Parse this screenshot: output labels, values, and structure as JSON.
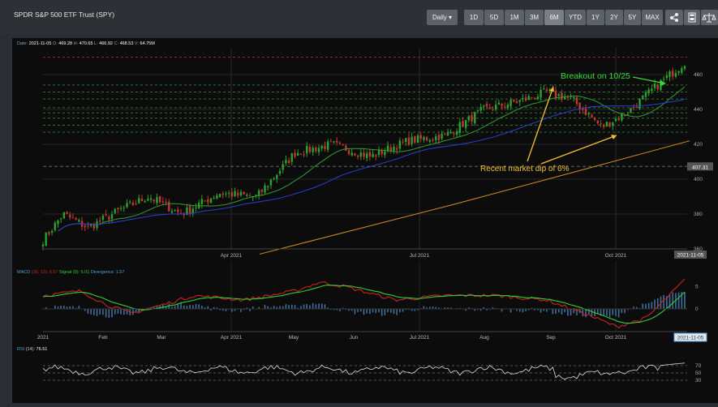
{
  "title": "SPDR S&P 500 ETF Trust (SPY)",
  "interval_button": "Daily ▾",
  "range_buttons": [
    "1D",
    "5D",
    "1M",
    "3M",
    "6M",
    "YTD",
    "1Y",
    "2Y",
    "5Y",
    "MAX"
  ],
  "active_range": "6M",
  "tool_icons": [
    "share-icon",
    "calculator-icon",
    "scale-icon"
  ],
  "info_line": {
    "date_label": "Date",
    "date": "2021-11-05",
    "open_label": "O",
    "open": "469.28",
    "high_label": "H",
    "high": "470.65",
    "low_label": "L",
    "low": "466.92",
    "close_label": "C",
    "close": "468.53",
    "vol_label": "V",
    "volume": "64.75M"
  },
  "price_axis_ticks": [
    "460",
    "440",
    "420",
    "400",
    "380",
    "360"
  ],
  "time_ticks_main": [
    "Apr 2021",
    "Jul 2021",
    "Oct 2021"
  ],
  "time_ticks_macd": [
    "2021",
    "Feb",
    "Mar",
    "Apr 2021",
    "May",
    "Jun",
    "Jul 2021",
    "Aug",
    "Sep",
    "Oct 2021"
  ],
  "date_badge": "2021-11-05",
  "price_badge": "407.31",
  "annotations": {
    "breakout": "Breakout on 10/25",
    "dip": "Recent market dip of 6%"
  },
  "macd_legend": {
    "name": "MACD",
    "params": "(26, 12)",
    "macd_value": "6.57",
    "signal_label": "Signal",
    "signal_params": "(9)",
    "signal_value": "5.01",
    "div_label": "Divergence",
    "div_value": "1.57"
  },
  "macd_ticks": [
    "5",
    "0"
  ],
  "rsi_legend": {
    "name": "RSI",
    "params": "(14)",
    "value": "76.51"
  },
  "rsi_ticks": [
    "70",
    "50",
    "30"
  ],
  "colors": {
    "up": "#2ea02e",
    "down": "#c0392b",
    "ma20": "#2ea02e",
    "ma50": "#2b3fd6",
    "ma200": "#d6901b",
    "macd": "#cc2222",
    "signal": "#33cc33",
    "annot_green": "#33dd33",
    "annot_yellow": "#f2c12e"
  }
}
